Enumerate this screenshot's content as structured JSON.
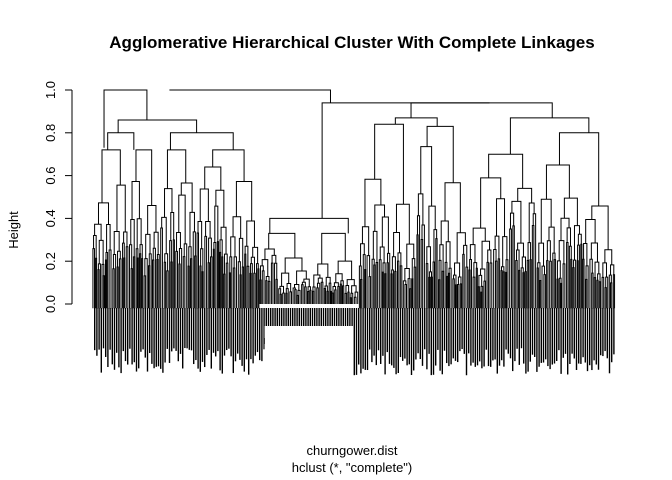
{
  "chart_data": {
    "type": "dendrogram",
    "title": "Agglomerative Hierarchical Cluster With Complete Linkages",
    "ylabel": "Height",
    "xlabel": "churngower.dist",
    "sub": "hclust (*, \"complete\")",
    "ylim": [
      0,
      1.0
    ],
    "yticks": [
      0.0,
      0.2,
      0.4,
      0.6,
      0.8,
      1.0
    ],
    "ytick_labels": [
      "0.0",
      "0.2",
      "0.4",
      "0.6",
      "0.8",
      "1.0"
    ],
    "merges": [
      {
        "id": "root",
        "height": 1.0,
        "x_left": 0.148,
        "x_right": 0.456
      },
      {
        "id": "left-group",
        "height": 1.0,
        "x_left": 0.105,
        "x_right": 0.148
      },
      {
        "id": "A",
        "height": 0.86,
        "x_left": 0.128,
        "x_right": 0.166
      },
      {
        "id": "middle-group",
        "height": 0.94,
        "x_left": 0.323,
        "x_right": 0.456
      },
      {
        "id": "C",
        "height": 0.94,
        "x_left": 0.408,
        "x_right": 0.528
      },
      {
        "id": "B",
        "height": 0.4,
        "x_left": 0.285,
        "x_right": 0.363
      },
      {
        "id": "D",
        "height": 0.87,
        "x_left": 0.528,
        "x_right": 0.597
      },
      {
        "id": "E",
        "height": 0.87,
        "x_left": 0.43,
        "x_right": 0.47
      }
    ]
  }
}
